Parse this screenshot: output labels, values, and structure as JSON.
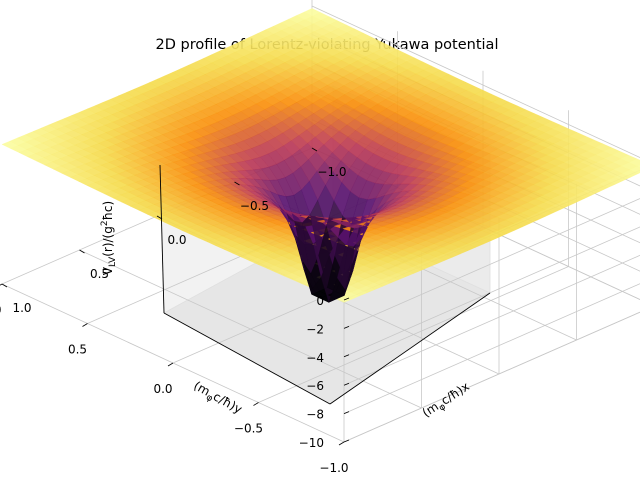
{
  "chart_data": {
    "type": "surface",
    "title": "2D profile of Lorentz-violating Yukawa potential",
    "xlabel": "(mφc/ħ)x",
    "ylabel": "(mφc/ħ)y",
    "zlabel": "V_LV(r)/(g²ħc)",
    "xlim": [
      -1.0,
      1.0
    ],
    "ylim": [
      -1.0,
      1.0
    ],
    "zlim": [
      -10,
      1
    ],
    "x_ticks": [
      "−1.0",
      "−0.5",
      "0.0",
      "0.5",
      "1.0"
    ],
    "y_ticks": [
      "−1.0",
      "−0.5",
      "0.0",
      "0.5",
      "1.0"
    ],
    "z_ticks": [
      "0",
      "−2",
      "−4",
      "−6",
      "−8",
      "−10"
    ],
    "surface": {
      "function": "V = -exp(-r)/r, r = sqrt(x^2 + y^2)",
      "grid_x": [
        -1.0,
        1.0
      ],
      "grid_y": [
        -1.0,
        1.0
      ],
      "min_value": -10,
      "plateau_value": 0
    },
    "colormap": "inferno",
    "grid": true
  },
  "labels": {
    "ylabel_main": "(m",
    "ylabel_sub": "φ",
    "ylabel_end": "c/ħ)y",
    "xlabel_main": "(m",
    "xlabel_sub": "φ",
    "xlabel_end": "c/ħ)x",
    "zlabel_main": "V",
    "zlabel_sub": "LV",
    "zlabel_mid": "(r)/(g",
    "zlabel_sup": "2",
    "zlabel_end": "ħc)"
  }
}
